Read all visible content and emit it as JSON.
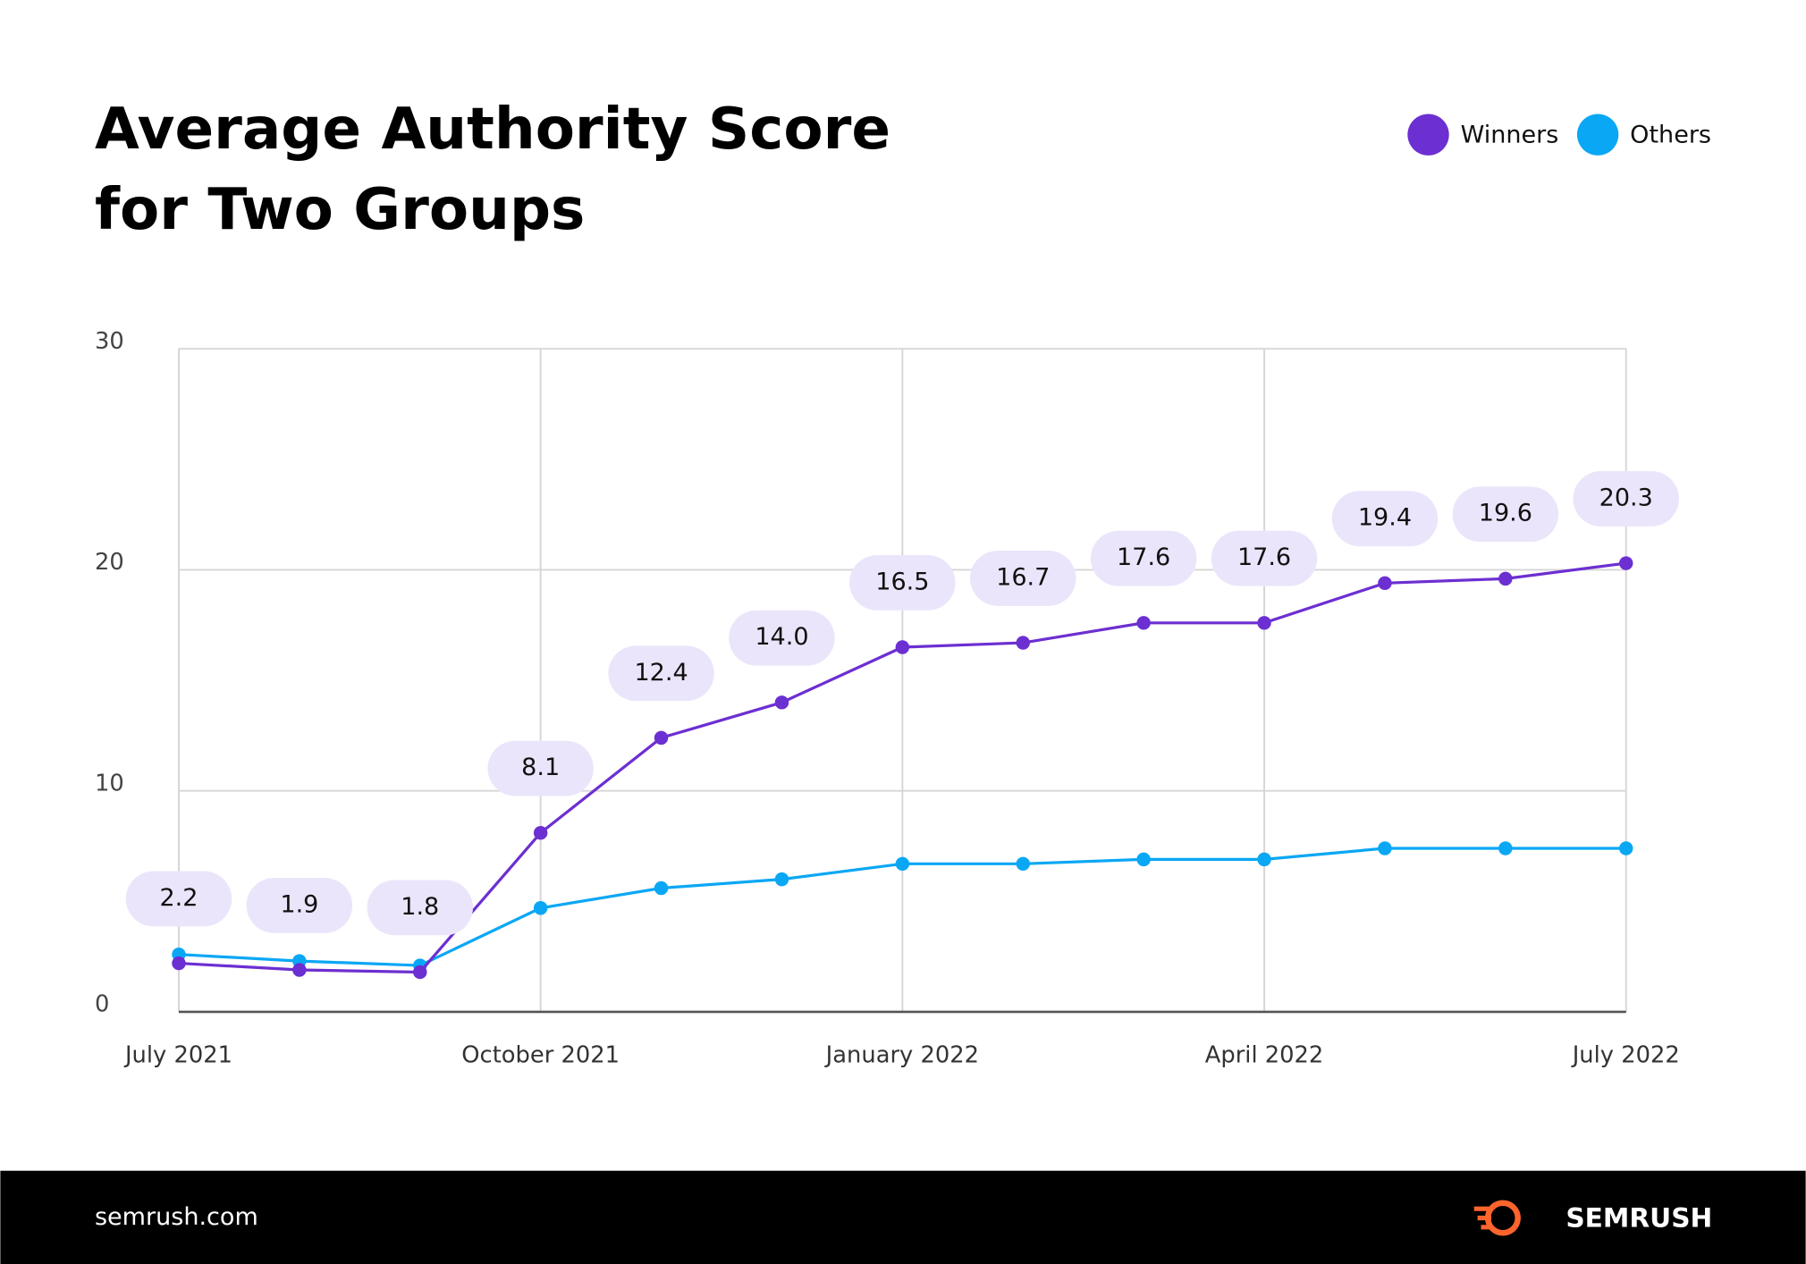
{
  "chart_data": {
    "type": "line",
    "title": "Average Authority Score for Two Groups",
    "categories": [
      "July 2021",
      null,
      null,
      "October 2021",
      null,
      null,
      "January 2022",
      null,
      null,
      "April 2022",
      null,
      null,
      "July 2022"
    ],
    "series": [
      {
        "name": "Winners",
        "color": "#6c2fd1",
        "values": [
          2.2,
          1.9,
          1.8,
          8.1,
          12.4,
          14.0,
          16.5,
          16.7,
          17.6,
          17.6,
          19.4,
          19.6,
          20.3
        ],
        "value_labels": [
          "2.2",
          "1.9",
          "1.8",
          "8.1",
          "12.4",
          "14.0",
          "16.5",
          "16.7",
          "17.6",
          "17.6",
          "19.4",
          "19.6",
          "20.3"
        ]
      },
      {
        "name": "Others",
        "color": "#0aa7f5",
        "values": [
          2.6,
          2.3,
          2.1,
          4.7,
          5.6,
          6.0,
          6.7,
          6.7,
          6.9,
          6.9,
          7.4,
          7.4,
          7.4
        ]
      }
    ],
    "ylim": [
      0,
      30
    ],
    "yticks": [
      0,
      10,
      20,
      30
    ],
    "grid": true,
    "legend": "top-right"
  },
  "footer": {
    "site": "semrush.com",
    "brand": "SEMRUSH"
  }
}
